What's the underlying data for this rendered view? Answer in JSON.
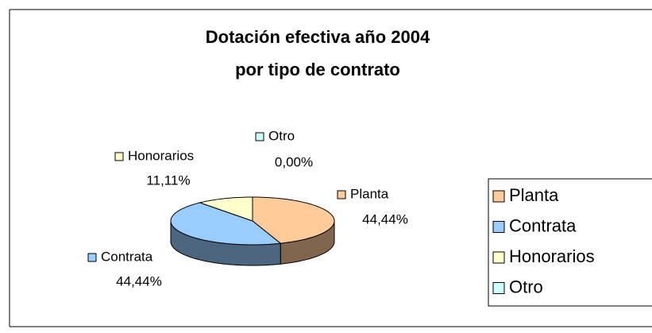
{
  "chart_data": {
    "type": "pie",
    "title": [
      "Dotación efectiva año 2004",
      "por tipo de contrato"
    ],
    "categories": [
      "Planta",
      "Contrata",
      "Honorarios",
      "Otro"
    ],
    "values": [
      44.44,
      44.44,
      11.11,
      0
    ],
    "value_labels": [
      "44,44%",
      "44,44%",
      "11,11%",
      "0,00%"
    ],
    "colors": [
      "#FFCC99",
      "#99CCFF",
      "#FFFFCC",
      "#CCFFFF"
    ],
    "legend": "right"
  }
}
